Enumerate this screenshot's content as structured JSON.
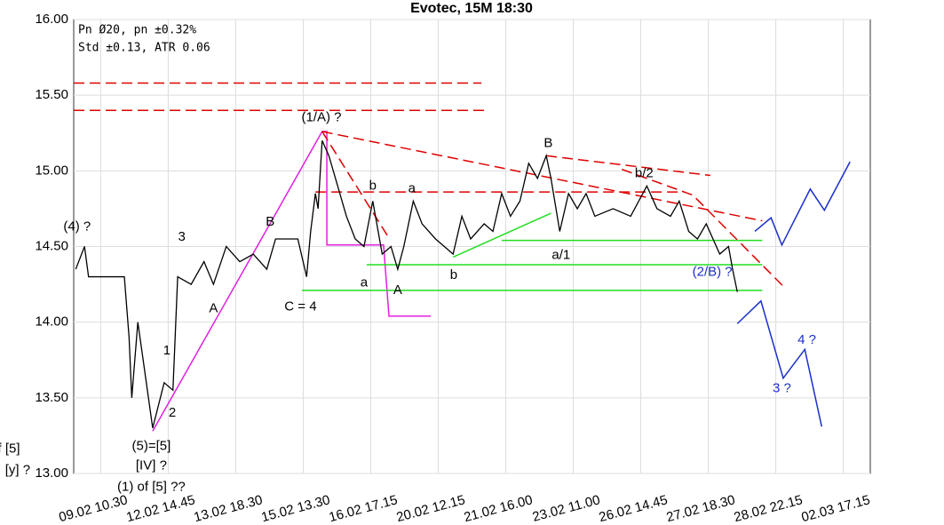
{
  "chart_data": {
    "type": "line",
    "title": "Evotec, 15M 18:30",
    "info": [
      "Pn  Ø20, pn ±0.32%",
      "Std ±0.13, ATR 0.06"
    ],
    "xlim": [
      0,
      118
    ],
    "ylim": [
      13,
      16
    ],
    "grid": true,
    "xticks": [
      {
        "value": 4,
        "label": "09.02 10.30"
      },
      {
        "value": 14,
        "label": "12.02 14.45"
      },
      {
        "value": 24,
        "label": "13.02 18.30"
      },
      {
        "value": 34,
        "label": "15.02 13.30"
      },
      {
        "value": 44,
        "label": "16.02 17.15"
      },
      {
        "value": 54,
        "label": "20.02 12.15"
      },
      {
        "value": 64,
        "label": "21.02 16.00"
      },
      {
        "value": 74,
        "label": "23.02 11.00"
      },
      {
        "value": 84,
        "label": "26.02 14.45"
      },
      {
        "value": 94,
        "label": "27.02 18.30"
      },
      {
        "value": 104,
        "label": "28.02 22.15"
      },
      {
        "value": 114,
        "label": "02.03 17.15"
      }
    ],
    "yticks": [
      {
        "value": 13,
        "label": "13.00"
      },
      {
        "value": 13.5,
        "label": "13.50"
      },
      {
        "value": 14,
        "label": "14.00"
      },
      {
        "value": 14.5,
        "label": "14.50"
      },
      {
        "value": 15,
        "label": "15.00"
      },
      {
        "value": 15.5,
        "label": "15.50"
      },
      {
        "value": 16,
        "label": "16.00"
      }
    ],
    "series": [
      {
        "color": "#000000",
        "x": [
          0.3,
          1.6,
          2.2,
          7.5,
          8.2,
          8.6,
          9.5,
          11.7,
          13.4,
          14.7,
          15.4,
          17.4,
          19.3,
          20.7,
          22.6,
          24.6,
          26.6,
          28.6,
          29.9,
          33.2,
          34.5,
          35.1,
          35.8,
          36.2,
          36.8,
          37.8,
          39.1,
          40.4,
          41.7,
          43.0,
          44.3,
          45.7,
          47.0,
          48.0,
          48.9,
          50.3,
          51.6,
          53.6,
          54.9,
          56.2,
          57.5,
          58.8,
          60.8,
          62.1,
          63.4,
          64.7,
          66.1,
          67.4,
          68.7,
          70.0,
          70.7,
          72.0,
          73.3,
          74.6,
          75.9,
          77.2,
          79.9,
          82.5,
          84.9,
          86.4,
          88.4,
          89.7,
          91.1,
          92.4,
          93.7,
          95.7,
          97.0,
          97.6,
          98.3
        ],
        "values": [
          14.35,
          14.5,
          14.3,
          14.3,
          13.9,
          13.5,
          14.0,
          13.3,
          13.6,
          13.55,
          14.3,
          14.25,
          14.4,
          14.25,
          14.5,
          14.4,
          14.45,
          14.35,
          14.55,
          14.55,
          14.3,
          14.6,
          14.85,
          14.75,
          15.2,
          15.1,
          14.9,
          14.7,
          14.55,
          14.5,
          14.8,
          14.45,
          14.5,
          14.35,
          14.5,
          14.8,
          14.65,
          14.55,
          14.5,
          14.45,
          14.7,
          14.55,
          14.65,
          14.6,
          14.85,
          14.7,
          14.8,
          15.05,
          14.95,
          15.1,
          14.95,
          14.6,
          14.85,
          14.75,
          14.85,
          14.7,
          14.75,
          14.7,
          14.9,
          14.75,
          14.7,
          14.8,
          14.6,
          14.55,
          14.65,
          14.45,
          14.5,
          14.35,
          14.2
        ]
      }
    ],
    "lines": [
      {
        "color": "#e020e0",
        "dash": false,
        "x": [
          11.7,
          36.8,
          37.5,
          37.5,
          45.9,
          46.7,
          52.9
        ],
        "y": [
          13.28,
          15.26,
          15.26,
          14.51,
          14.51,
          14.04,
          14.04
        ]
      },
      {
        "color": "#e00000",
        "dash": true,
        "x": [
          0,
          60.4
        ],
        "y": [
          15.58,
          15.58
        ]
      },
      {
        "color": "#e00000",
        "dash": true,
        "x": [
          0,
          60.8
        ],
        "y": [
          15.4,
          15.4
        ]
      },
      {
        "color": "#e00000",
        "dash": true,
        "x": [
          36.8,
          102
        ],
        "y": [
          15.26,
          14.67
        ]
      },
      {
        "color": "#e00000",
        "dash": true,
        "x": [
          36.8,
          46.5
        ],
        "y": [
          15.26,
          14.57
        ]
      },
      {
        "color": "#e00000",
        "dash": true,
        "x": [
          35.8,
          90.4
        ],
        "y": [
          14.86,
          14.86
        ]
      },
      {
        "color": "#e00000",
        "dash": true,
        "x": [
          70,
          94.3
        ],
        "y": [
          15.1,
          14.97
        ]
      },
      {
        "color": "#e00000",
        "dash": true,
        "x": [
          81.2,
          91.7,
          105.5
        ],
        "y": [
          15.01,
          14.84,
          14.22
        ]
      },
      {
        "color": "#22dd22",
        "dash": false,
        "x": [
          43.4,
          102
        ],
        "y": [
          14.38,
          14.38
        ]
      },
      {
        "color": "#22dd22",
        "dash": false,
        "x": [
          33.8,
          102
        ],
        "y": [
          14.21,
          14.21
        ]
      },
      {
        "color": "#22dd22",
        "dash": false,
        "x": [
          56.2,
          70.7
        ],
        "y": [
          14.43,
          14.72
        ]
      },
      {
        "color": "#22dd22",
        "dash": false,
        "x": [
          63.4,
          102
        ],
        "y": [
          14.54,
          14.54
        ]
      },
      {
        "color": "#1a2fcc",
        "dash": false,
        "x": [
          100.9,
          103.3,
          104.9,
          109.1,
          111.2,
          115
        ],
        "y": [
          14.6,
          14.69,
          14.51,
          14.88,
          14.74,
          15.06
        ]
      },
      {
        "color": "#1a2fcc",
        "dash": false,
        "x": [
          98.3,
          101.8,
          105.1,
          108.3,
          110.8
        ],
        "y": [
          13.99,
          14.14,
          13.63,
          13.82,
          13.31
        ]
      }
    ],
    "annotations": [
      {
        "text": "(4) ?",
        "x": 0.5,
        "y": 14.63,
        "color": "#000000"
      },
      {
        "text": "3",
        "x": 16,
        "y": 14.56,
        "color": "#000000"
      },
      {
        "text": "1",
        "x": 13.8,
        "y": 13.81,
        "color": "#000000"
      },
      {
        "text": "2",
        "x": 14.6,
        "y": 13.4,
        "color": "#000000"
      },
      {
        "text": "(5)=[5]",
        "x": 11.5,
        "y": 13.18,
        "color": "#000000"
      },
      {
        "text": "[IV] ?",
        "x": 11.5,
        "y": 13.05,
        "color": "#000000"
      },
      {
        "text": "(1) of [5] ??",
        "x": 11.5,
        "y": 12.91,
        "color": "#000000"
      },
      {
        "text": "f [5]",
        "x": -9.6,
        "y": 13.16,
        "color": "#000000"
      },
      {
        "text": "[y] ?",
        "x": -8.3,
        "y": 13.02,
        "color": "#000000"
      },
      {
        "text": "A",
        "x": 20.7,
        "y": 14.09,
        "color": "#000000"
      },
      {
        "text": "B",
        "x": 29.1,
        "y": 14.66,
        "color": "#000000"
      },
      {
        "text": "C = 4",
        "x": 33.6,
        "y": 14.1,
        "color": "#000000"
      },
      {
        "text": "(1/A) ?",
        "x": 36.7,
        "y": 15.35,
        "color": "#000000"
      },
      {
        "text": "b",
        "x": 44.3,
        "y": 14.9,
        "color": "#000000"
      },
      {
        "text": "a",
        "x": 50.1,
        "y": 14.88,
        "color": "#000000"
      },
      {
        "text": "a",
        "x": 43,
        "y": 14.26,
        "color": "#000000"
      },
      {
        "text": "A",
        "x": 48,
        "y": 14.21,
        "color": "#000000"
      },
      {
        "text": "b",
        "x": 56.3,
        "y": 14.31,
        "color": "#000000"
      },
      {
        "text": "B",
        "x": 70.3,
        "y": 15.18,
        "color": "#000000"
      },
      {
        "text": "b/2",
        "x": 84.5,
        "y": 14.98,
        "color": "#000000"
      },
      {
        "text": "a/1",
        "x": 72.2,
        "y": 14.44,
        "color": "#000000"
      },
      {
        "text": "(2/B) ?",
        "x": 94.6,
        "y": 14.33,
        "color": "#1a2fcc"
      },
      {
        "text": "4 ?",
        "x": 108.6,
        "y": 13.88,
        "color": "#1a2fcc"
      },
      {
        "text": "3 ?",
        "x": 104.9,
        "y": 13.56,
        "color": "#1a2fcc"
      }
    ]
  }
}
